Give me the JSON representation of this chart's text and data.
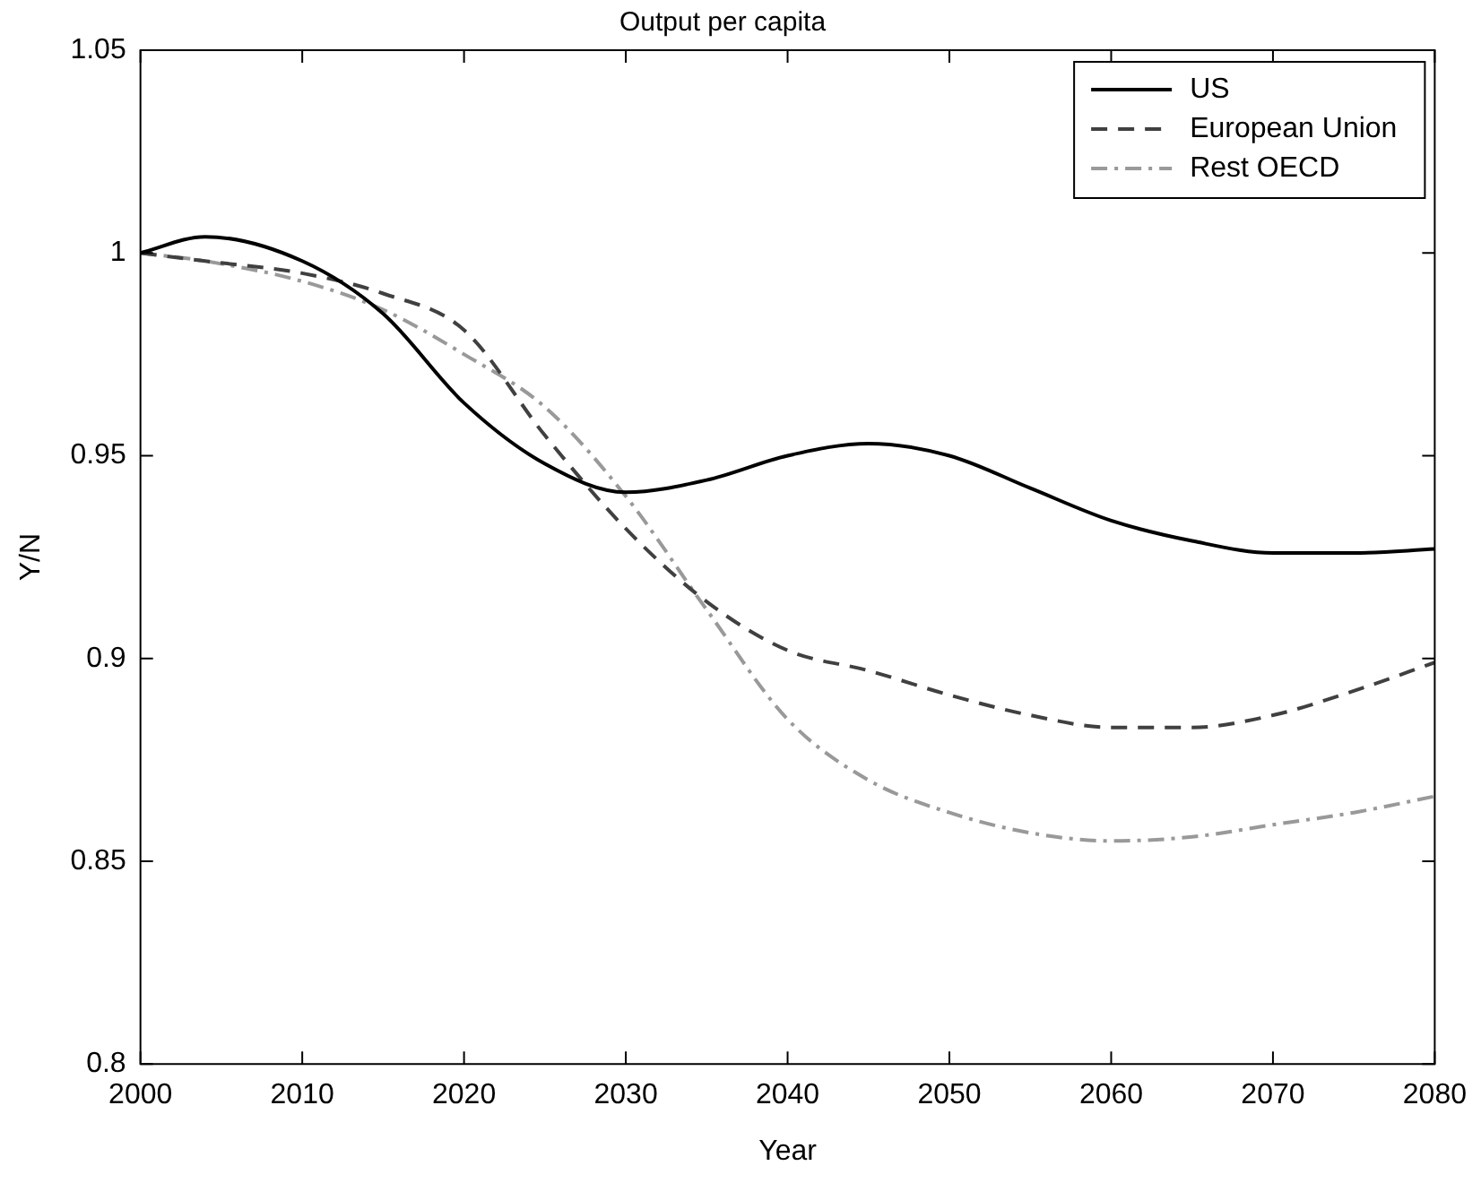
{
  "chart_data": {
    "type": "line",
    "title": "Output per capita",
    "xlabel": "Year",
    "ylabel": "Y/N",
    "x": [
      2000,
      2004,
      2010,
      2015,
      2020,
      2025,
      2030,
      2035,
      2040,
      2045,
      2050,
      2055,
      2060,
      2065,
      2070,
      2075,
      2080
    ],
    "series": [
      {
        "name": "US",
        "color": "#000000",
        "line_style": "solid",
        "values": [
          1.0,
          1.004,
          0.998,
          0.985,
          0.963,
          0.948,
          0.941,
          0.944,
          0.95,
          0.953,
          0.95,
          0.942,
          0.934,
          0.929,
          0.926,
          0.926,
          0.927
        ]
      },
      {
        "name": "European Union",
        "color": "#404040",
        "line_style": "dashed",
        "values": [
          1.0,
          0.998,
          0.995,
          0.99,
          0.981,
          0.955,
          0.932,
          0.914,
          0.902,
          0.897,
          0.891,
          0.886,
          0.883,
          0.883,
          0.886,
          0.892,
          0.899
        ]
      },
      {
        "name": "Rest OECD",
        "color": "#999999",
        "line_style": "dashdot",
        "values": [
          1.0,
          0.998,
          0.993,
          0.986,
          0.975,
          0.962,
          0.94,
          0.912,
          0.885,
          0.87,
          0.862,
          0.857,
          0.855,
          0.856,
          0.859,
          0.862,
          0.866
        ]
      }
    ],
    "xlim": [
      2000,
      2080
    ],
    "xticks": [
      2000,
      2010,
      2020,
      2030,
      2040,
      2050,
      2060,
      2070,
      2080
    ],
    "ylim": [
      0.8,
      1.05
    ],
    "yticks": [
      0.8,
      0.85,
      0.9,
      0.95,
      1,
      1.05
    ],
    "grid": false,
    "legend": "top right",
    "marker": "none"
  }
}
